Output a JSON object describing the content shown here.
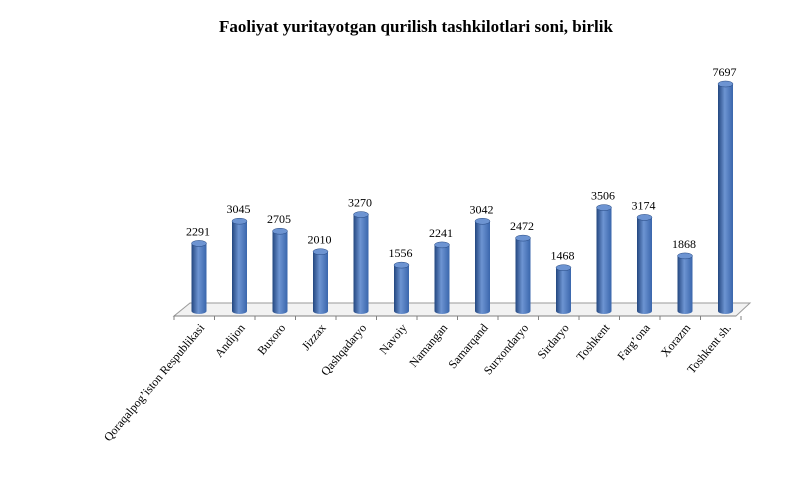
{
  "chart_data": {
    "type": "bar",
    "title": "Faoliyat yuritayotgan qurilish tashkilotlari soni, birlik",
    "categories": [
      "Qoraqalpog’iston Respublikasi",
      "Andijon",
      "Buxoro",
      "Jizzax",
      "Qashqadaryo",
      "Navoiy",
      "Namangan",
      "Samarqand",
      "Surxondaryo",
      "Sirdaryo",
      "Toshkent",
      "Farg’ona",
      "Xorazm",
      "Toshkent sh."
    ],
    "values": [
      2291,
      3045,
      2705,
      2010,
      3270,
      1556,
      2241,
      3042,
      2472,
      1468,
      3506,
      3174,
      1868,
      7697
    ],
    "ylim": [
      0,
      7697
    ],
    "grid": false,
    "legend": "none",
    "bar_color": "#3a66ac",
    "bar_color_light": "#6d94d2",
    "bar_color_dark": "#23467f"
  }
}
